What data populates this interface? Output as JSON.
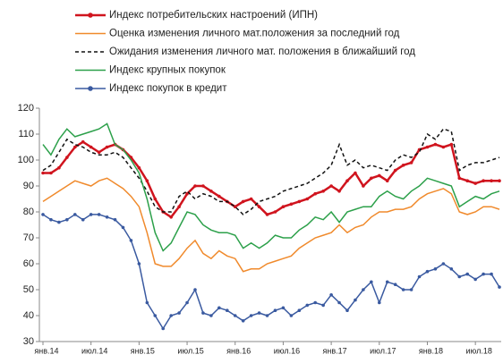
{
  "chart_data": {
    "type": "line",
    "categories": [
      "янв.14",
      null,
      null,
      null,
      null,
      null,
      "июл.14",
      null,
      null,
      null,
      null,
      null,
      "янв.15",
      null,
      null,
      null,
      null,
      null,
      "июл.15",
      null,
      null,
      null,
      null,
      null,
      "янв.16",
      null,
      null,
      null,
      null,
      null,
      "июл.16",
      null,
      null,
      null,
      null,
      null,
      "янв.17",
      null,
      null,
      null,
      null,
      null,
      "июл.17",
      null,
      null,
      null,
      null,
      null,
      "янв.18",
      null,
      null,
      null,
      null,
      null,
      "июл.18",
      null,
      null,
      null
    ],
    "series": [
      {
        "name": "Индекс потребительских настроений (ИПН)",
        "color": "#d0141e",
        "dash": false,
        "markers": true,
        "width": 2.5,
        "values": [
          95,
          95,
          97,
          101,
          105,
          107,
          105,
          103,
          105,
          106,
          104,
          101,
          97,
          92,
          85,
          80,
          78,
          82,
          87,
          90,
          90,
          88,
          86,
          84,
          82,
          84,
          85,
          82,
          79,
          80,
          82,
          83,
          84,
          85,
          87,
          88,
          90,
          88,
          92,
          95,
          90,
          93,
          94,
          92,
          96,
          98,
          99,
          104,
          105,
          106,
          105,
          106,
          93,
          92,
          91,
          92,
          92,
          92
        ]
      },
      {
        "name": "Оценка изменения личного мат.положения за последний год",
        "color": "#f08a2c",
        "dash": false,
        "markers": false,
        "width": 1.5,
        "values": [
          84,
          86,
          88,
          90,
          92,
          91,
          90,
          92,
          93,
          91,
          89,
          86,
          82,
          72,
          60,
          59,
          59,
          62,
          66,
          69,
          64,
          62,
          65,
          63,
          62,
          57,
          58,
          58,
          60,
          61,
          62,
          63,
          66,
          68,
          70,
          71,
          72,
          75,
          72,
          74,
          75,
          78,
          80,
          80,
          81,
          81,
          82,
          85,
          87,
          88,
          89,
          87,
          80,
          79,
          80,
          82,
          82,
          81
        ]
      },
      {
        "name": "Ожидания изменения личного мат. положения в ближайший год",
        "color": "#111111",
        "dash": true,
        "markers": false,
        "width": 1.5,
        "values": [
          96,
          98,
          103,
          108,
          106,
          105,
          103,
          102,
          102,
          103,
          101,
          97,
          93,
          88,
          82,
          80,
          80,
          86,
          88,
          85,
          87,
          86,
          84,
          84,
          82,
          79,
          81,
          84,
          85,
          86,
          88,
          89,
          90,
          91,
          93,
          95,
          98,
          106,
          98,
          100,
          97,
          98,
          97,
          96,
          100,
          102,
          101,
          103,
          110,
          108,
          112,
          111,
          96,
          98,
          99,
          99,
          100,
          101
        ]
      },
      {
        "name": "Индекс крупных покупок",
        "color": "#2ca04a",
        "dash": false,
        "markers": false,
        "width": 1.5,
        "values": [
          106,
          102,
          108,
          112,
          109,
          110,
          111,
          112,
          114,
          106,
          104,
          100,
          95,
          85,
          72,
          65,
          68,
          74,
          80,
          79,
          75,
          73,
          72,
          72,
          71,
          66,
          68,
          66,
          68,
          71,
          70,
          70,
          73,
          75,
          78,
          77,
          80,
          76,
          80,
          81,
          82,
          82,
          86,
          88,
          86,
          85,
          88,
          90,
          93,
          92,
          91,
          90,
          82,
          84,
          86,
          85,
          87,
          88
        ]
      },
      {
        "name": "Индекс покупок в кредит",
        "color": "#3a5aa0",
        "dash": false,
        "markers": true,
        "width": 1.5,
        "values": [
          79,
          77,
          76,
          77,
          79,
          77,
          79,
          79,
          78,
          77,
          74,
          69,
          60,
          45,
          40,
          35,
          40,
          41,
          45,
          50,
          41,
          40,
          43,
          42,
          40,
          38,
          40,
          41,
          40,
          42,
          43,
          40,
          42,
          44,
          45,
          44,
          48,
          45,
          42,
          46,
          50,
          53,
          45,
          53,
          52,
          50,
          50,
          55,
          57,
          58,
          60,
          58,
          55,
          56,
          54,
          56,
          56,
          51
        ]
      }
    ],
    "ylim": [
      30,
      120
    ],
    "yticks": [
      30,
      40,
      50,
      60,
      70,
      80,
      90,
      100,
      110,
      120
    ]
  }
}
